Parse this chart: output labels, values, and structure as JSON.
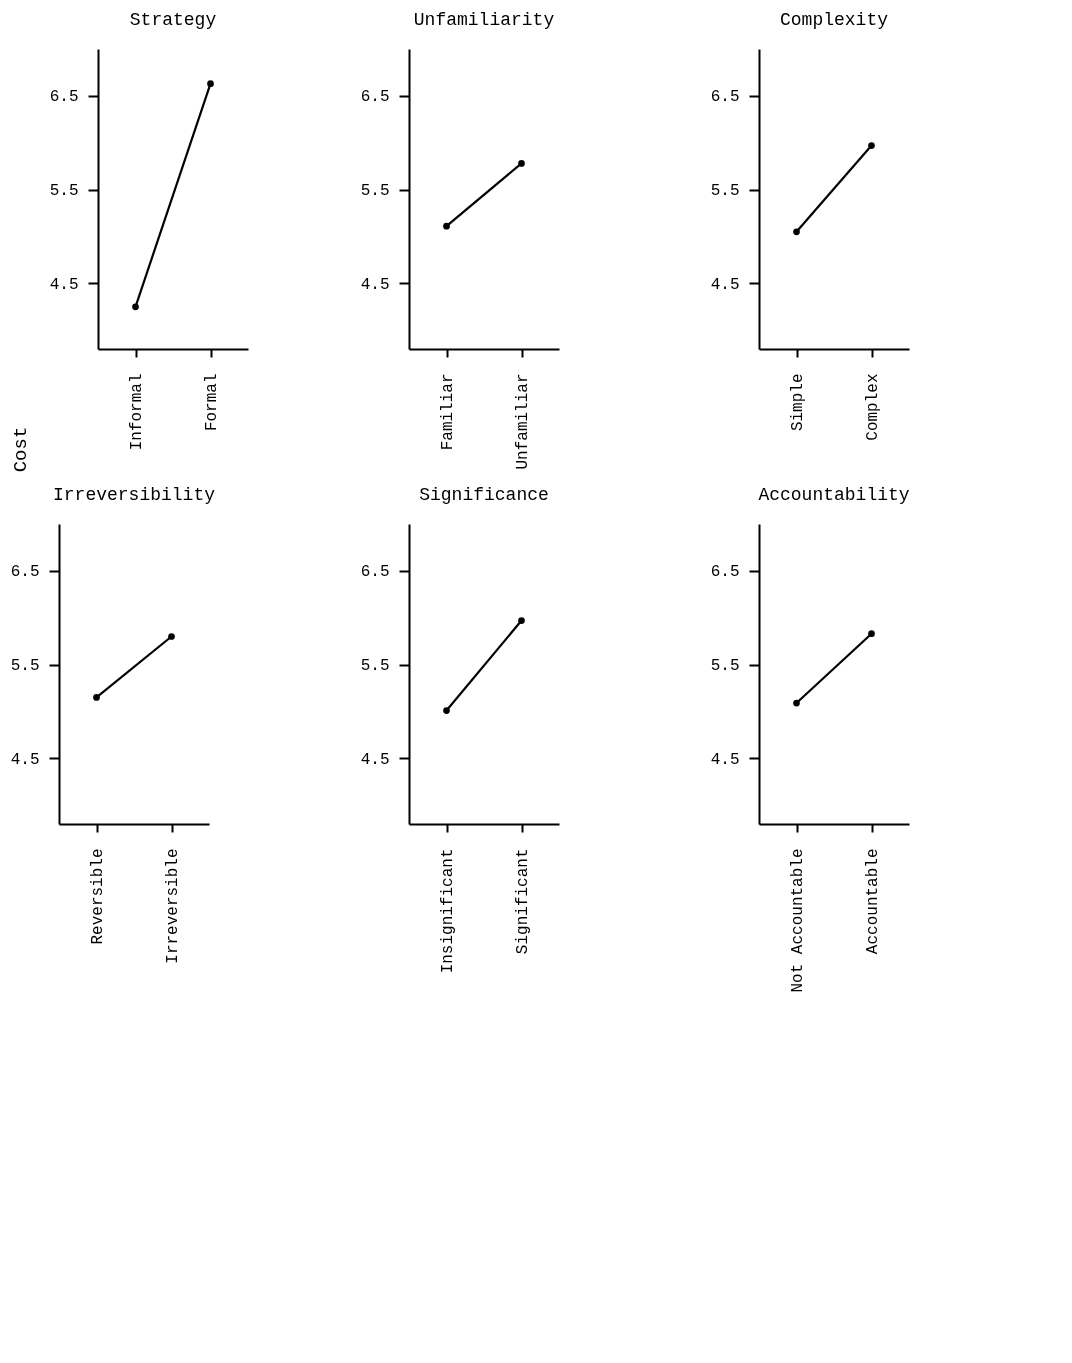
{
  "chart_data": [
    {
      "type": "line",
      "title": "Strategy",
      "ylabel": "Cost",
      "categories": [
        "Informal",
        "Formal"
      ],
      "values": [
        4.25,
        6.63
      ],
      "color": "#000000",
      "ylim": [
        3.8,
        7.0
      ],
      "yticks": [
        {
          "value": 4.5,
          "label": "4.5"
        },
        {
          "value": 5.5,
          "label": "5.5"
        },
        {
          "value": 6.5,
          "label": "6.5"
        }
      ],
      "marker": "circle",
      "line_style": "solid"
    },
    {
      "type": "line",
      "title": "Unfamiliarity",
      "categories": [
        "Familiar",
        "Unfamiliar"
      ],
      "values": [
        5.11,
        5.78
      ],
      "color": "#000000",
      "ylim": [
        3.8,
        7.0
      ],
      "yticks": [
        {
          "value": 4.5,
          "label": "4.5"
        },
        {
          "value": 5.5,
          "label": "5.5"
        },
        {
          "value": 6.5,
          "label": "6.5"
        }
      ],
      "marker": "circle",
      "line_style": "solid"
    },
    {
      "type": "line",
      "title": "Complexity",
      "categories": [
        "Simple",
        "Complex"
      ],
      "values": [
        5.05,
        5.97
      ],
      "color": "#000000",
      "ylim": [
        3.8,
        7.0
      ],
      "yticks": [
        {
          "value": 4.5,
          "label": "4.5"
        },
        {
          "value": 5.5,
          "label": "5.5"
        },
        {
          "value": 6.5,
          "label": "6.5"
        }
      ],
      "marker": "circle",
      "line_style": "solid"
    },
    {
      "type": "line",
      "title": "Irreversibility",
      "categories": [
        "Reversible",
        "Irreversible"
      ],
      "values": [
        5.15,
        5.8
      ],
      "color": "#000000",
      "ylim": [
        3.8,
        7.0
      ],
      "yticks": [
        {
          "value": 4.5,
          "label": "4.5"
        },
        {
          "value": 5.5,
          "label": "5.5"
        },
        {
          "value": 6.5,
          "label": "6.5"
        }
      ],
      "marker": "circle",
      "line_style": "solid"
    },
    {
      "type": "line",
      "title": "Significance",
      "categories": [
        "Insignificant",
        "Significant"
      ],
      "values": [
        5.01,
        5.97
      ],
      "color": "#000000",
      "ylim": [
        3.8,
        7.0
      ],
      "yticks": [
        {
          "value": 4.5,
          "label": "4.5"
        },
        {
          "value": 5.5,
          "label": "5.5"
        },
        {
          "value": 6.5,
          "label": "6.5"
        }
      ],
      "marker": "circle",
      "line_style": "solid"
    },
    {
      "type": "line",
      "title": "Accountability",
      "categories": [
        "Not Accountable",
        "Accountable"
      ],
      "values": [
        5.09,
        5.83
      ],
      "color": "#000000",
      "ylim": [
        3.8,
        7.0
      ],
      "yticks": [
        {
          "value": 4.5,
          "label": "4.5"
        },
        {
          "value": 5.5,
          "label": "5.5"
        },
        {
          "value": 6.5,
          "label": "6.5"
        }
      ],
      "marker": "circle",
      "line_style": "solid"
    }
  ]
}
